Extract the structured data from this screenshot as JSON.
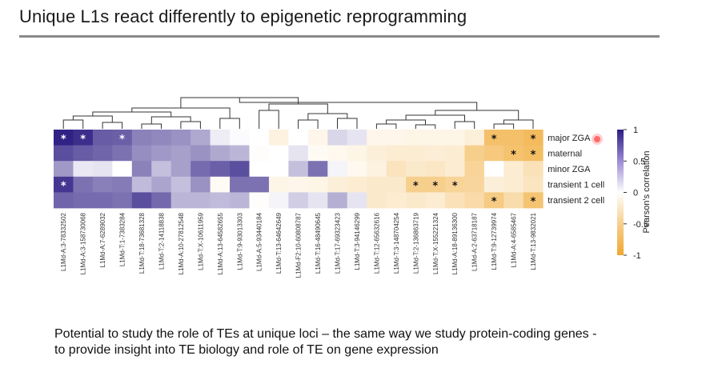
{
  "slide": {
    "title": "Unique L1s react differently to epigenetic reprogramming",
    "footer_line1": "Potential to study the role of TEs at unique loci – the same way we study protein-coding genes -",
    "footer_line2": "to provide insight into TE biology and role of TE on gene expression"
  },
  "chart_data": {
    "type": "heatmap",
    "columns": [
      "L1Md-A:3-78332502",
      "L1Md-A:3-158730068",
      "L1Md-A:7-6289032",
      "L1Md-T:1-7383284",
      "L1Md-T:18-73681328",
      "L1Md-T:2-14118838",
      "L1Md-A:10-27812548",
      "L1Md-T:X-10611959",
      "L1Md-A:13-64582655",
      "L1Md-T:9-93013303",
      "L1Md-A:5-93440184",
      "L1Md-T:13-64642649",
      "L1Md-F2:10-60808787",
      "L1Md-T:16-48490645",
      "L1Md-T:17-69323423",
      "L1Md-T:3-94146299",
      "L1Md-T:12-65632616",
      "L1Md-T:3-148704254",
      "L1Md-T:2-136863719",
      "L1Md-T:X-155221324",
      "L1Md-A:18-89136300",
      "L1Md-A:2-63718187",
      "L1Md-T:9-12739974",
      "L1Md-A:4-6585467",
      "L1Md-T:13-9832021"
    ],
    "rows": [
      "major ZGA",
      "maternal",
      "minor ZGA",
      "transient 1 cell",
      "transient 2 cell"
    ],
    "values": [
      [
        0.98,
        0.92,
        0.72,
        0.7,
        0.55,
        0.52,
        0.48,
        0.38,
        0.08,
        0.02,
        0.0,
        -0.15,
        0.0,
        -0.1,
        0.18,
        0.12,
        -0.1,
        -0.1,
        -0.12,
        -0.12,
        -0.12,
        -0.18,
        -0.72,
        -0.72,
        -0.78
      ],
      [
        0.78,
        0.72,
        0.68,
        0.62,
        0.5,
        0.45,
        0.42,
        0.48,
        0.38,
        0.32,
        -0.02,
        0.0,
        0.12,
        -0.05,
        -0.08,
        -0.12,
        -0.18,
        -0.22,
        -0.22,
        -0.2,
        -0.22,
        -0.55,
        -0.62,
        -0.7,
        -0.75
      ],
      [
        0.45,
        0.1,
        0.12,
        0.0,
        0.55,
        0.28,
        0.42,
        0.65,
        0.7,
        0.78,
        0.0,
        0.0,
        0.28,
        0.62,
        0.05,
        -0.08,
        -0.15,
        -0.32,
        -0.25,
        -0.28,
        -0.22,
        -0.5,
        0.0,
        -0.22,
        -0.35
      ],
      [
        0.88,
        0.62,
        0.56,
        0.58,
        0.3,
        0.4,
        0.28,
        0.48,
        -0.05,
        0.62,
        0.62,
        -0.12,
        -0.1,
        -0.12,
        -0.18,
        -0.22,
        -0.25,
        -0.25,
        -0.55,
        -0.55,
        -0.5,
        -0.48,
        -0.18,
        -0.22,
        -0.3
      ],
      [
        0.68,
        0.65,
        0.65,
        0.62,
        0.78,
        0.66,
        0.32,
        0.32,
        0.3,
        0.32,
        -0.02,
        0.05,
        0.22,
        0.12,
        0.35,
        0.12,
        -0.25,
        -0.22,
        -0.25,
        -0.22,
        -0.35,
        -0.42,
        -0.6,
        -0.4,
        -0.68
      ]
    ],
    "significant": [
      [
        0,
        0
      ],
      [
        0,
        1
      ],
      [
        0,
        3
      ],
      [
        0,
        22
      ],
      [
        0,
        24
      ],
      [
        1,
        23
      ],
      [
        1,
        24
      ],
      [
        3,
        0
      ],
      [
        3,
        18
      ],
      [
        3,
        19
      ],
      [
        3,
        20
      ],
      [
        4,
        22
      ],
      [
        4,
        24
      ]
    ],
    "significance_marker": "*",
    "colorbar": {
      "label": "Pearson's correlation",
      "ticks": [
        1,
        0.5,
        0,
        -0.5,
        -1
      ],
      "tick_labels": [
        "1",
        "0.5",
        "0",
        "-0.5",
        "-1"
      ],
      "range": [
        -1,
        1
      ],
      "high_color": "#2c1c82",
      "mid_color": "#ffffff",
      "low_color": "#f0a830"
    }
  }
}
